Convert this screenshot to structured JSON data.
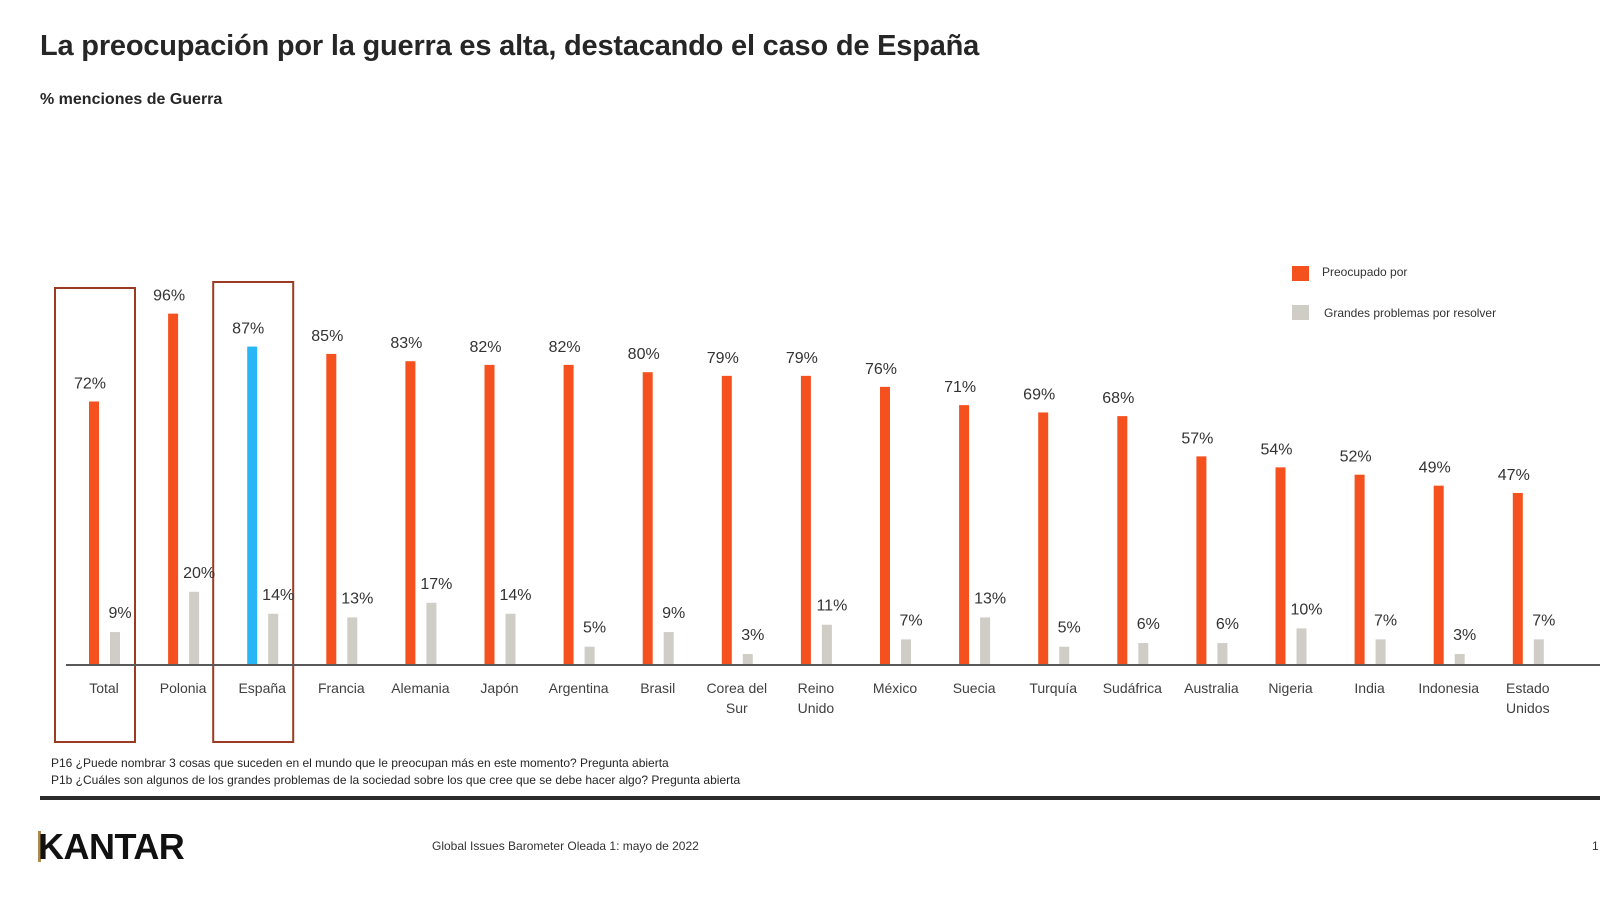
{
  "header": {
    "title": "La preocupación por la guerra es alta, destacando el caso de España",
    "subtitle": "% menciones de Guerra"
  },
  "colors": {
    "preocupado": "#f4511e",
    "highlight": "#29b6f6",
    "grandes_problemas": "#cfcdc6",
    "highlight_box": "#9b3b24",
    "axis": "#595959"
  },
  "chart_data": {
    "type": "bar",
    "title": "La preocupación por la guerra es alta, destacando el caso de España",
    "subtitle": "% menciones de Guerra",
    "xlabel": "",
    "ylabel": "",
    "ylim": [
      0,
      100
    ],
    "grid": false,
    "legend_position": "top-right",
    "categories": [
      [
        "Total"
      ],
      [
        "Polonia"
      ],
      [
        "España"
      ],
      [
        "Francia"
      ],
      [
        "Alemania"
      ],
      [
        "Japón"
      ],
      [
        "Argentina"
      ],
      [
        "Brasil"
      ],
      [
        "Corea del",
        "Sur"
      ],
      [
        "Reino",
        "Unido"
      ],
      [
        "México"
      ],
      [
        "Suecia"
      ],
      [
        "Turquía"
      ],
      [
        "Sudáfrica"
      ],
      [
        "Australia"
      ],
      [
        "Nigeria"
      ],
      [
        "India"
      ],
      [
        "Indonesia"
      ],
      [
        "Estado",
        "Unidos"
      ]
    ],
    "highlighted_categories": [
      "Total",
      "España"
    ],
    "highlighted_bar": "España",
    "series": [
      {
        "name": "Preocupado por",
        "values": [
          72,
          96,
          87,
          85,
          83,
          82,
          82,
          80,
          79,
          79,
          76,
          71,
          69,
          68,
          57,
          54,
          52,
          49,
          47
        ],
        "labels": [
          "72%",
          "96%",
          "87%",
          "85%",
          "83%",
          "82%",
          "82%",
          "80%",
          "79%",
          "79%",
          "76%",
          "71%",
          "69%",
          "68%",
          "57%",
          "54%",
          "52%",
          "49%",
          "47%"
        ]
      },
      {
        "name": "Grandes problemas por resolver",
        "values": [
          9,
          20,
          14,
          13,
          17,
          14,
          5,
          9,
          3,
          11,
          7,
          13,
          5,
          6,
          6,
          10,
          7,
          3,
          7
        ],
        "labels": [
          "9%",
          "20%",
          "14%",
          "13%",
          "17%",
          "14%",
          "5%",
          "9%",
          "3%",
          "11%",
          "7%",
          "13%",
          "5%",
          "6%",
          "6%",
          "10%",
          "7%",
          "3%",
          "7%"
        ]
      }
    ]
  },
  "legend": {
    "items": [
      {
        "label": "Preocupado por"
      },
      {
        "label": "Grandes problemas por resolver"
      }
    ]
  },
  "footnotes": {
    "p16": "P16 ¿Puede nombrar 3 cosas que suceden en el mundo que le preocupan más en este momento? Pregunta abierta",
    "p1b": "P1b ¿Cuáles son algunos de los grandes problemas de la sociedad sobre los que cree que se debe hacer algo? Pregunta abierta"
  },
  "footer": {
    "logo": "KANTAR",
    "source": "Global Issues Barometer Oleada 1: mayo de 2022",
    "page_number": "1"
  }
}
